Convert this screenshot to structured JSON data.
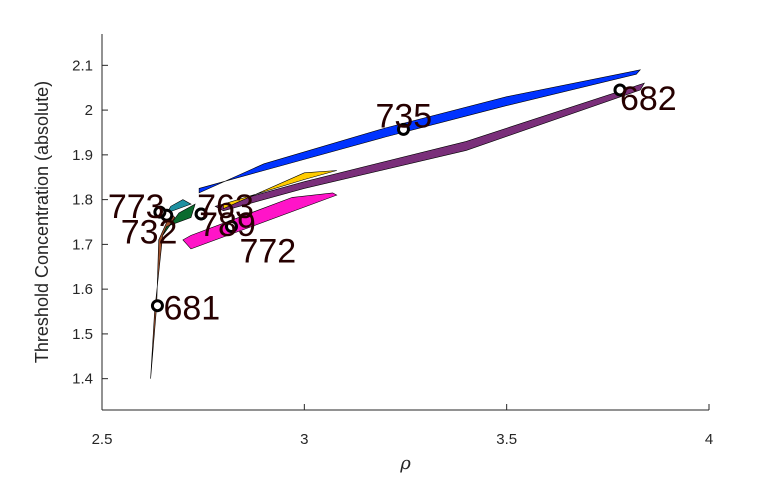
{
  "chart_data": {
    "type": "scatter",
    "title": "",
    "xlabel": "ρ",
    "ylabel": "Threshold Concentration (absolute)",
    "xlim": [
      2.5,
      4.0
    ],
    "ylim": [
      1.33,
      2.17
    ],
    "xticks": [
      2.5,
      3,
      3.5,
      4
    ],
    "xtick_labels": [
      "2.5",
      "3",
      "3.5",
      "4"
    ],
    "yticks": [
      1.4,
      1.5,
      1.6,
      1.7,
      1.8,
      1.9,
      2.0,
      2.1
    ],
    "ytick_labels": [
      "1.4",
      "1.5",
      "1.6",
      "1.7",
      "1.8",
      "1.9",
      "2",
      "2.1"
    ],
    "grid": false,
    "regions": [
      {
        "color": "#a0522d",
        "points": [
          [
            2.62,
            1.4
          ],
          [
            2.63,
            1.55
          ],
          [
            2.65,
            1.72
          ],
          [
            2.68,
            1.76
          ],
          [
            2.67,
            1.77
          ],
          [
            2.64,
            1.71
          ],
          [
            2.635,
            1.56
          ]
        ]
      },
      {
        "color": "#0a6b2e",
        "points": [
          [
            2.65,
            1.72
          ],
          [
            2.69,
            1.77
          ],
          [
            2.73,
            1.79
          ],
          [
            2.72,
            1.76
          ],
          [
            2.66,
            1.74
          ]
        ]
      },
      {
        "color": "#1e90a0",
        "points": [
          [
            2.66,
            1.77
          ],
          [
            2.72,
            1.79
          ],
          [
            2.7,
            1.8
          ],
          [
            2.67,
            1.785
          ]
        ]
      },
      {
        "color": "#0033ff",
        "points": [
          [
            2.74,
            1.815
          ],
          [
            2.9,
            1.88
          ],
          [
            3.2,
            1.96
          ],
          [
            3.5,
            2.03
          ],
          [
            3.83,
            2.09
          ],
          [
            3.82,
            2.08
          ],
          [
            3.5,
            2.01
          ],
          [
            3.2,
            1.94
          ],
          [
            2.9,
            1.865
          ],
          [
            2.74,
            1.825
          ]
        ]
      },
      {
        "color": "#7a2f7a",
        "points": [
          [
            2.78,
            1.785
          ],
          [
            3.0,
            1.84
          ],
          [
            3.4,
            1.93
          ],
          [
            3.84,
            2.06
          ],
          [
            3.83,
            2.045
          ],
          [
            3.4,
            1.91
          ],
          [
            3.0,
            1.825
          ],
          [
            2.8,
            1.775
          ]
        ]
      },
      {
        "color": "#ffcc00",
        "points": [
          [
            2.8,
            1.78
          ],
          [
            3.0,
            1.86
          ],
          [
            3.08,
            1.865
          ],
          [
            3.0,
            1.845
          ],
          [
            2.8,
            1.79
          ]
        ]
      },
      {
        "color": "#ff14c8",
        "points": [
          [
            2.72,
            1.69
          ],
          [
            3.08,
            1.81
          ],
          [
            3.07,
            1.815
          ],
          [
            2.97,
            1.805
          ],
          [
            2.72,
            1.72
          ],
          [
            2.7,
            1.71
          ]
        ]
      }
    ],
    "points": [
      {
        "label": "681",
        "x": 2.637,
        "y": 1.563
      },
      {
        "label": "732",
        "x": 2.66,
        "y": 1.765
      },
      {
        "label": "773",
        "x": 2.643,
        "y": 1.772
      },
      {
        "label": "763",
        "x": 2.745,
        "y": 1.768
      },
      {
        "label": "789",
        "x": 2.745,
        "y": 1.768
      },
      {
        "label": "772",
        "x": 2.82,
        "y": 1.74
      },
      {
        "label": "735",
        "x": 3.245,
        "y": 1.957
      },
      {
        "label": "682",
        "x": 3.78,
        "y": 2.045
      }
    ],
    "colors": {
      "axis": "#262626",
      "marker_edge": "#000000",
      "label": "#260000",
      "region_edge": "#000000"
    }
  }
}
